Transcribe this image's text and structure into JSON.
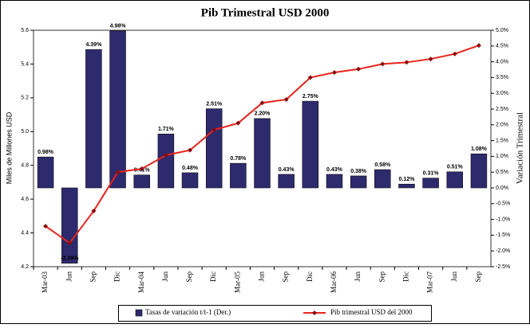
{
  "chart_data": {
    "type": "bar",
    "title": "Pib Trimestral USD 2000",
    "y_label": "Miles de Millones USD",
    "y2_label": "Variación Trimestral",
    "categories": [
      "Mar-03",
      "Jun",
      "Sep",
      "Dic",
      "Mar-04",
      "Jun",
      "Sep",
      "Dic",
      "Mar-05",
      "Jun",
      "Sep",
      "Dic",
      "Mar-06",
      "Jun",
      "Sep",
      "Dic",
      "Mar-07",
      "Jun",
      "Sep"
    ],
    "series": [
      {
        "name": "Tasas de variación t/t-1 (Der.)",
        "type": "bar",
        "axis": "y2",
        "color": "#2e2a6e",
        "values": [
          0.98,
          -2.39,
          4.39,
          4.98,
          0.41,
          1.71,
          0.48,
          2.51,
          0.78,
          2.2,
          0.43,
          2.75,
          0.43,
          0.38,
          0.58,
          0.12,
          0.31,
          0.51,
          1.08
        ],
        "value_labels": [
          "0.98%",
          "-2.39%",
          "4.39%",
          "4.98%",
          "0.41%",
          "1.71%",
          "0.48%",
          "2.51%",
          "0.78%",
          "2.20%",
          "0.43%",
          "2.75%",
          "0.43%",
          "0.38%",
          "0.58%",
          "0.12%",
          "0.31%",
          "0.51%",
          "1.08%"
        ]
      },
      {
        "name": "Pib trimestral USD del 2000",
        "type": "line",
        "axis": "y",
        "color": "#e8241c",
        "values": [
          4.44,
          4.34,
          4.53,
          4.76,
          4.78,
          4.86,
          4.89,
          5.01,
          5.05,
          5.17,
          5.19,
          5.32,
          5.35,
          5.37,
          5.4,
          5.41,
          5.43,
          5.46,
          5.51
        ]
      }
    ],
    "ylim": [
      4.2,
      5.6
    ],
    "yticks": [
      4.2,
      4.4,
      4.6,
      4.8,
      {
        "value": 5,
        "label": "5.0"
      },
      5.2,
      5.4,
      5.6
    ],
    "y2lim": [
      -2.5,
      5
    ],
    "y2ticks": [
      {
        "value": -2.5,
        "label": "-2.5%"
      },
      {
        "value": -2,
        "label": "-2.0%"
      },
      {
        "value": -1.5,
        "label": "-1.5%"
      },
      {
        "value": -1,
        "label": "-1.0%"
      },
      {
        "value": -0.5,
        "label": "-0.5%"
      },
      {
        "value": 0,
        "label": "0.0%"
      },
      {
        "value": 0.5,
        "label": "0.5%"
      },
      {
        "value": 1,
        "label": "1.0%"
      },
      {
        "value": 1.5,
        "label": "1.5%"
      },
      {
        "value": 2,
        "label": "2.0%"
      },
      {
        "value": 2.5,
        "label": "2.5%"
      },
      {
        "value": 3,
        "label": "3.0%"
      },
      {
        "value": 3.5,
        "label": "3.5%"
      },
      {
        "value": 4,
        "label": "4.0%"
      },
      {
        "value": 4.5,
        "label": "4.5%"
      },
      {
        "value": 5,
        "label": "5.0%"
      }
    ],
    "legend": "bottom"
  }
}
